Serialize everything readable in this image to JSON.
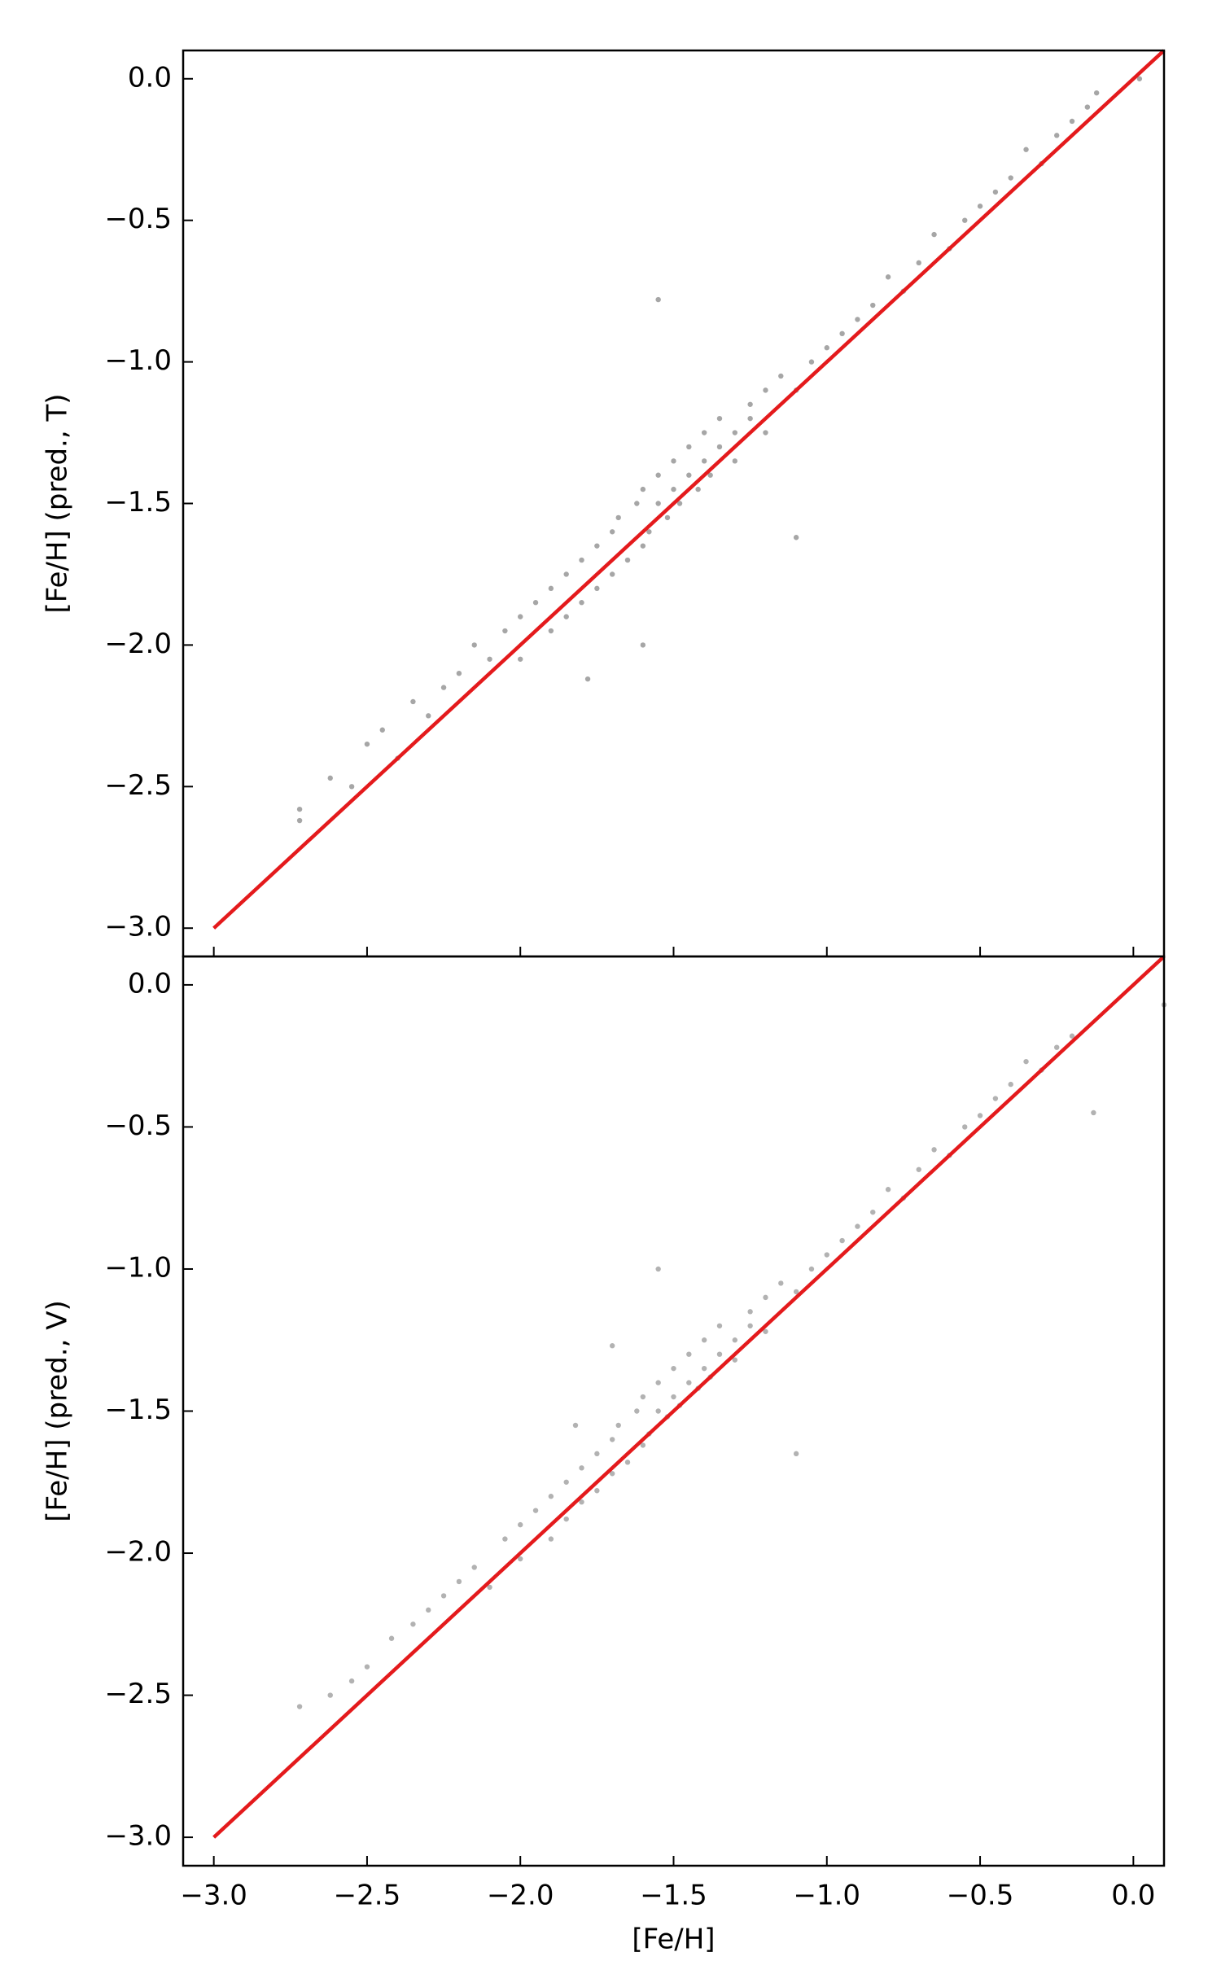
{
  "chart_data": [
    {
      "type": "scatter",
      "ylabel": "[Fe/H] (pred., T)",
      "xlim": [
        -3.1,
        0.1
      ],
      "ylim": [
        -3.1,
        0.1
      ],
      "xticklabels": false,
      "xticks": [
        {
          "value": -3.0,
          "label": "−3.0"
        },
        {
          "value": -2.5,
          "label": "−2.5"
        },
        {
          "value": -2.0,
          "label": "−2.0"
        },
        {
          "value": -1.5,
          "label": "−1.5"
        },
        {
          "value": -1.0,
          "label": "−1.0"
        },
        {
          "value": -0.5,
          "label": "−0.5"
        },
        {
          "value": 0.0,
          "label": "0.0"
        }
      ],
      "yticks": [
        {
          "value": -3.0,
          "label": "−3.0"
        },
        {
          "value": -2.5,
          "label": "−2.5"
        },
        {
          "value": -2.0,
          "label": "−2.0"
        },
        {
          "value": -1.5,
          "label": "−1.5"
        },
        {
          "value": -1.0,
          "label": "−1.0"
        },
        {
          "value": -0.5,
          "label": "−0.5"
        },
        {
          "value": 0.0,
          "label": "0.0"
        }
      ],
      "series": [
        {
          "type": "scatter",
          "color": "#000000",
          "opacity": 0.35,
          "x": [
            -2.72,
            -2.72,
            -2.62,
            -2.5,
            -2.45,
            -2.4,
            -2.35,
            -2.3,
            -2.25,
            -2.2,
            -2.15,
            -2.1,
            -2.05,
            -2.0,
            -2.0,
            -1.95,
            -1.9,
            -1.9,
            -1.85,
            -1.85,
            -1.8,
            -1.8,
            -1.75,
            -1.75,
            -1.7,
            -1.7,
            -1.68,
            -1.65,
            -1.62,
            -1.6,
            -1.6,
            -1.58,
            -1.55,
            -1.55,
            -1.52,
            -1.5,
            -1.5,
            -1.48,
            -1.45,
            -1.45,
            -1.42,
            -1.4,
            -1.4,
            -1.38,
            -1.35,
            -1.35,
            -1.3,
            -1.3,
            -1.25,
            -1.25,
            -1.2,
            -1.2,
            -1.15,
            -1.1,
            -1.1,
            -1.55,
            -1.05,
            -1.0,
            -0.95,
            -0.9,
            -0.85,
            -0.8,
            -0.75,
            -0.7,
            -0.65,
            -0.6,
            -0.55,
            -0.5,
            -0.45,
            -0.4,
            -0.35,
            -0.3,
            -0.25,
            -0.2,
            -0.15,
            -0.12,
            0.02,
            -1.78,
            -1.6,
            -2.55
          ],
          "values": [
            -2.58,
            -2.62,
            -2.47,
            -2.35,
            -2.3,
            -2.4,
            -2.2,
            -2.25,
            -2.15,
            -2.1,
            -2.0,
            -2.05,
            -1.95,
            -1.9,
            -2.05,
            -1.85,
            -1.95,
            -1.8,
            -1.75,
            -1.9,
            -1.7,
            -1.85,
            -1.65,
            -1.8,
            -1.6,
            -1.75,
            -1.55,
            -1.7,
            -1.5,
            -1.65,
            -1.45,
            -1.6,
            -1.5,
            -1.4,
            -1.55,
            -1.45,
            -1.35,
            -1.5,
            -1.4,
            -1.3,
            -1.45,
            -1.35,
            -1.25,
            -1.4,
            -1.3,
            -1.2,
            -1.25,
            -1.35,
            -1.2,
            -1.15,
            -1.1,
            -1.25,
            -1.05,
            -1.1,
            -1.62,
            -0.78,
            -1.0,
            -0.95,
            -0.9,
            -0.85,
            -0.8,
            -0.7,
            -0.75,
            -0.65,
            -0.55,
            -0.6,
            -0.5,
            -0.45,
            -0.4,
            -0.35,
            -0.25,
            -0.3,
            -0.2,
            -0.15,
            -0.1,
            -0.05,
            0.0,
            -2.12,
            -2.0,
            -2.5
          ]
        },
        {
          "type": "line",
          "color": "#e41a1c",
          "x": [
            -3.0,
            0.1
          ],
          "values": [
            -3.0,
            0.1
          ]
        }
      ]
    },
    {
      "type": "scatter",
      "ylabel": "[Fe/H] (pred., V)",
      "xlabel": "[Fe/H]",
      "xlim": [
        -3.1,
        0.1
      ],
      "ylim": [
        -3.1,
        0.1
      ],
      "xticklabels": true,
      "xticks": [
        {
          "value": -3.0,
          "label": "−3.0"
        },
        {
          "value": -2.5,
          "label": "−2.5"
        },
        {
          "value": -2.0,
          "label": "−2.0"
        },
        {
          "value": -1.5,
          "label": "−1.5"
        },
        {
          "value": -1.0,
          "label": "−1.0"
        },
        {
          "value": -0.5,
          "label": "−0.5"
        },
        {
          "value": 0.0,
          "label": "0.0"
        }
      ],
      "yticks": [
        {
          "value": -3.0,
          "label": "−3.0"
        },
        {
          "value": -2.5,
          "label": "−2.5"
        },
        {
          "value": -2.0,
          "label": "−2.0"
        },
        {
          "value": -1.5,
          "label": "−1.5"
        },
        {
          "value": -1.0,
          "label": "−1.0"
        },
        {
          "value": -0.5,
          "label": "−0.5"
        },
        {
          "value": 0.0,
          "label": "0.0"
        }
      ],
      "series": [
        {
          "type": "scatter",
          "color": "#000000",
          "opacity": 0.3,
          "x": [
            -2.72,
            -2.62,
            -2.5,
            -2.42,
            -2.35,
            -2.3,
            -2.25,
            -2.2,
            -2.15,
            -2.1,
            -2.05,
            -2.0,
            -2.0,
            -1.95,
            -1.9,
            -1.9,
            -1.85,
            -1.85,
            -1.8,
            -1.8,
            -1.75,
            -1.75,
            -1.7,
            -1.7,
            -1.68,
            -1.65,
            -1.62,
            -1.6,
            -1.6,
            -1.58,
            -1.55,
            -1.55,
            -1.52,
            -1.5,
            -1.5,
            -1.48,
            -1.45,
            -1.45,
            -1.42,
            -1.4,
            -1.4,
            -1.38,
            -1.35,
            -1.35,
            -1.3,
            -1.3,
            -1.25,
            -1.25,
            -1.2,
            -1.2,
            -1.15,
            -1.1,
            -1.1,
            -1.55,
            -1.05,
            -1.0,
            -0.95,
            -0.9,
            -0.85,
            -0.8,
            -0.75,
            -0.7,
            -0.65,
            -0.6,
            -0.55,
            -0.5,
            -0.45,
            -0.4,
            -0.35,
            -0.3,
            -0.25,
            -0.2,
            -0.13,
            0.1,
            -1.7,
            -1.82,
            -2.55
          ],
          "values": [
            -2.54,
            -2.5,
            -2.4,
            -2.3,
            -2.25,
            -2.2,
            -2.15,
            -2.1,
            -2.05,
            -2.12,
            -1.95,
            -1.9,
            -2.02,
            -1.85,
            -1.95,
            -1.8,
            -1.75,
            -1.88,
            -1.7,
            -1.82,
            -1.65,
            -1.78,
            -1.6,
            -1.72,
            -1.55,
            -1.68,
            -1.5,
            -1.62,
            -1.45,
            -1.58,
            -1.5,
            -1.4,
            -1.52,
            -1.45,
            -1.35,
            -1.48,
            -1.4,
            -1.3,
            -1.42,
            -1.35,
            -1.25,
            -1.38,
            -1.3,
            -1.2,
            -1.25,
            -1.32,
            -1.2,
            -1.15,
            -1.1,
            -1.22,
            -1.05,
            -1.08,
            -1.65,
            -1.0,
            -1.0,
            -0.95,
            -0.9,
            -0.85,
            -0.8,
            -0.72,
            -0.75,
            -0.65,
            -0.58,
            -0.6,
            -0.5,
            -0.46,
            -0.4,
            -0.35,
            -0.27,
            -0.3,
            -0.22,
            -0.18,
            -0.45,
            -0.07,
            -1.27,
            -1.55,
            -2.45
          ]
        },
        {
          "type": "line",
          "color": "#e41a1c",
          "x": [
            -3.0,
            0.1
          ],
          "values": [
            -3.0,
            0.1
          ]
        }
      ]
    }
  ]
}
